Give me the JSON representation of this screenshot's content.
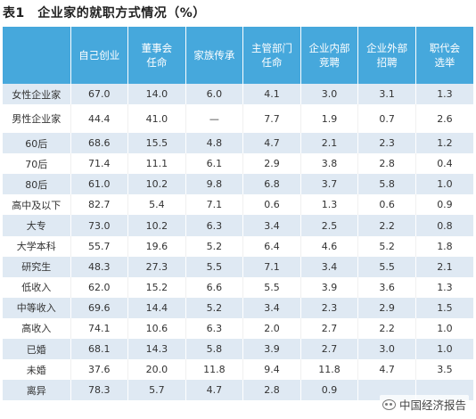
{
  "title": "表1　企业家的就职方式情况（%）",
  "columns": [
    "",
    "自己创业",
    "董事会\n任命",
    "家族传承",
    "主管部门\n任命",
    "企业内部\n竞聘",
    "企业外部\n招聘",
    "职代会\n选举"
  ],
  "rows": [
    [
      "女性企业家",
      "67.0",
      "14.0",
      "6.0",
      "4.1",
      "3.0",
      "3.1",
      "1.3"
    ],
    [
      "男性企业家",
      "44.4",
      "41.0",
      "—",
      "7.7",
      "1.9",
      "0.7",
      "2.6"
    ],
    [
      "60后",
      "68.6",
      "15.5",
      "4.8",
      "4.7",
      "2.1",
      "2.3",
      "1.2"
    ],
    [
      "70后",
      "71.4",
      "11.1",
      "6.1",
      "2.9",
      "3.8",
      "2.8",
      "0.4"
    ],
    [
      "80后",
      "61.0",
      "10.2",
      "9.8",
      "6.8",
      "3.7",
      "5.8",
      "1.0"
    ],
    [
      "高中及以下",
      "82.7",
      "5.4",
      "7.1",
      "0.6",
      "1.3",
      "0.6",
      "0.9"
    ],
    [
      "大专",
      "73.0",
      "10.2",
      "6.3",
      "3.4",
      "2.5",
      "2.2",
      "0.8"
    ],
    [
      "大学本科",
      "55.7",
      "19.6",
      "5.2",
      "6.4",
      "4.6",
      "5.2",
      "1.8"
    ],
    [
      "研究生",
      "48.3",
      "27.3",
      "5.5",
      "7.1",
      "3.4",
      "5.5",
      "2.1"
    ],
    [
      "低收入",
      "62.0",
      "15.2",
      "6.6",
      "5.5",
      "3.9",
      "3.6",
      "1.3"
    ],
    [
      "中等收入",
      "69.6",
      "14.4",
      "5.2",
      "3.4",
      "2.3",
      "2.9",
      "1.5"
    ],
    [
      "高收入",
      "74.1",
      "10.6",
      "6.3",
      "2.0",
      "2.7",
      "2.2",
      "1.0"
    ],
    [
      "已婚",
      "68.1",
      "14.3",
      "5.8",
      "3.9",
      "2.7",
      "3.0",
      "1.0"
    ],
    [
      "未婚",
      "37.6",
      "20.0",
      "11.8",
      "9.4",
      "11.8",
      "4.7",
      "3.5"
    ],
    [
      "离异",
      "78.3",
      "5.7",
      "4.7",
      "2.8",
      "0.9",
      "",
      ""
    ]
  ],
  "watermark": "中国经济报告",
  "colors": {
    "header_bg": "#46a8dc",
    "stripe_bg": "#dfe9f3"
  }
}
